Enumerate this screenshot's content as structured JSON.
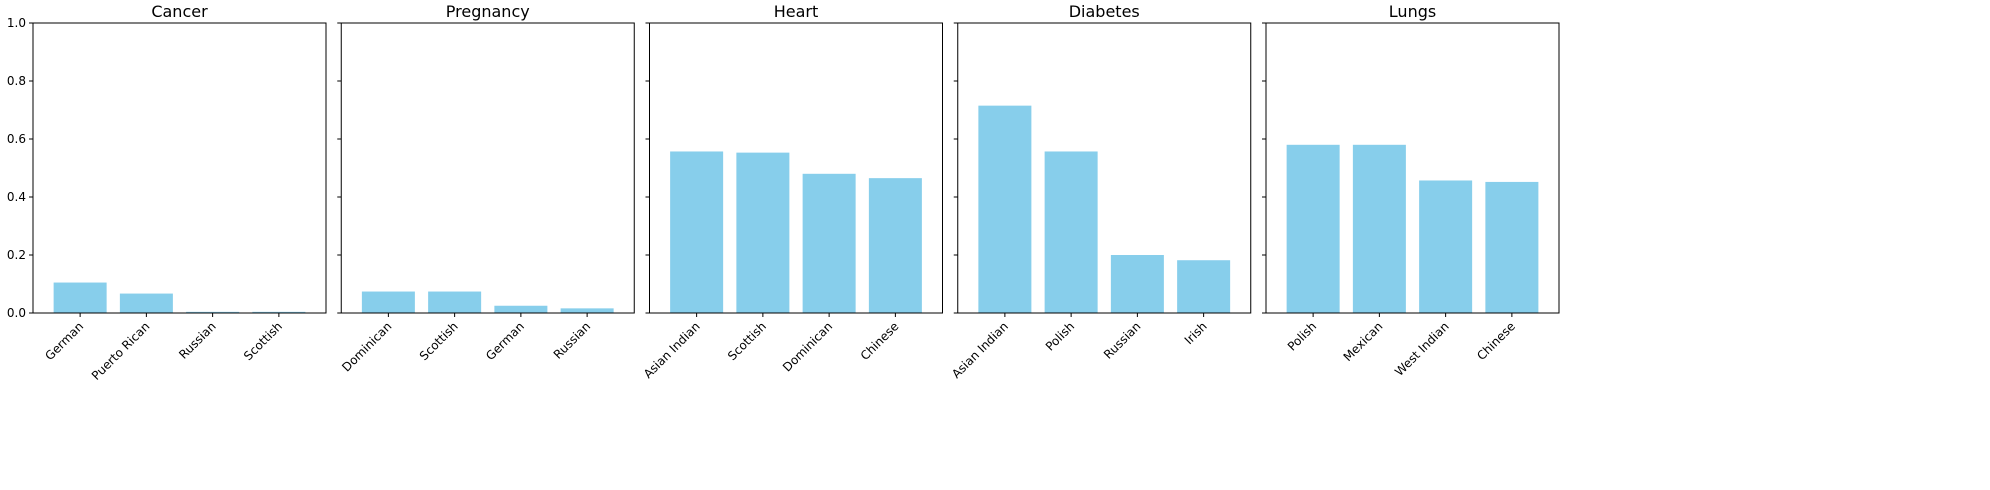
{
  "chart_data": [
    {
      "type": "bar",
      "title": "Cancer",
      "categories": [
        "German",
        "Puerto Rican",
        "Russian",
        "Scottish"
      ],
      "values": [
        0.105,
        0.067,
        0.004,
        0.004
      ],
      "ylim": [
        0,
        1
      ],
      "yticks": [
        "0.0",
        "0.2",
        "0.4",
        "0.6",
        "0.8",
        "1.0"
      ],
      "show_ytick_labels": true,
      "bar_color": "#87CEEB"
    },
    {
      "type": "bar",
      "title": "Pregnancy",
      "categories": [
        "Dominican",
        "Scottish",
        "German",
        "Russian"
      ],
      "values": [
        0.074,
        0.074,
        0.025,
        0.016
      ],
      "ylim": [
        0,
        1
      ],
      "yticks": [
        "0.0",
        "0.2",
        "0.4",
        "0.6",
        "0.8",
        "1.0"
      ],
      "show_ytick_labels": false,
      "bar_color": "#87CEEB"
    },
    {
      "type": "bar",
      "title": "Heart",
      "categories": [
        "Asian Indian",
        "Scottish",
        "Dominican",
        "Chinese"
      ],
      "values": [
        0.557,
        0.553,
        0.48,
        0.465
      ],
      "ylim": [
        0,
        1
      ],
      "yticks": [
        "0.0",
        "0.2",
        "0.4",
        "0.6",
        "0.8",
        "1.0"
      ],
      "show_ytick_labels": false,
      "bar_color": "#87CEEB"
    },
    {
      "type": "bar",
      "title": "Diabetes",
      "categories": [
        "Asian Indian",
        "Polish",
        "Russian",
        "Irish"
      ],
      "values": [
        0.715,
        0.557,
        0.2,
        0.182
      ],
      "ylim": [
        0,
        1
      ],
      "yticks": [
        "0.0",
        "0.2",
        "0.4",
        "0.6",
        "0.8",
        "1.0"
      ],
      "show_ytick_labels": false,
      "bar_color": "#87CEEB"
    },
    {
      "type": "bar",
      "title": "Lungs",
      "categories": [
        "Polish",
        "Mexican",
        "West Indian",
        "Chinese"
      ],
      "values": [
        0.58,
        0.58,
        0.457,
        0.452
      ],
      "ylim": [
        0,
        1
      ],
      "yticks": [
        "0.0",
        "0.2",
        "0.4",
        "0.6",
        "0.8",
        "1.0"
      ],
      "show_ytick_labels": false,
      "bar_color": "#87CEEB"
    }
  ]
}
